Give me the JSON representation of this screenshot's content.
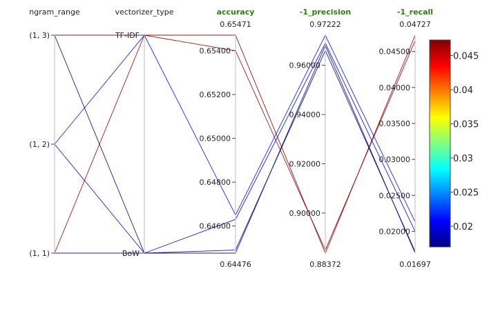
{
  "chart_data": {
    "type": "parallel_coordinates",
    "axes": [
      {
        "key": "ngram_range",
        "label": "ngram_range",
        "kind": "categorical",
        "categories": [
          "(1, 1)",
          "(1, 2)",
          "(1, 3)"
        ],
        "highlighted": false
      },
      {
        "key": "vectorizer_type",
        "label": "vectorizer_type",
        "kind": "categorical",
        "categories": [
          "BoW",
          "TF-IDF"
        ],
        "highlighted": false
      },
      {
        "key": "accuracy",
        "label": "accuracy",
        "kind": "numeric",
        "range": [
          0.64476,
          0.65471
        ],
        "range_labels": [
          "0.64476",
          "0.65471"
        ],
        "ticks": [
          0.646,
          0.648,
          0.65,
          0.652,
          0.654
        ],
        "tick_labels": [
          "0.64600",
          "0.64800",
          "0.65000",
          "0.65200",
          "0.65400"
        ],
        "highlighted": true
      },
      {
        "key": "precision",
        "label": "-1_precision",
        "kind": "numeric",
        "range": [
          0.88372,
          0.97222
        ],
        "range_labels": [
          "0.88372",
          "0.97222"
        ],
        "ticks": [
          0.9,
          0.92,
          0.94,
          0.96
        ],
        "tick_labels": [
          "0.90000",
          "0.92000",
          "0.94000",
          "0.96000"
        ],
        "highlighted": true
      },
      {
        "key": "recall",
        "label": "-1_recall",
        "kind": "numeric",
        "range": [
          0.01697,
          0.04727
        ],
        "range_labels": [
          "0.01697",
          "0.04727"
        ],
        "ticks": [
          0.02,
          0.025,
          0.03,
          0.035,
          0.04,
          0.045
        ],
        "tick_labels": [
          "0.02000",
          "0.02500",
          "0.03000",
          "0.03500",
          "0.04000",
          "0.04500"
        ],
        "highlighted": true
      }
    ],
    "rows": [
      {
        "ngram_range": "(1, 3)",
        "vectorizer_type": "TF-IDF",
        "accuracy": 0.65471,
        "precision": 0.88372,
        "recall": 0.04727
      },
      {
        "ngram_range": "(1, 1)",
        "vectorizer_type": "TF-IDF",
        "accuracy": 0.654,
        "precision": 0.885,
        "recall": 0.0465
      },
      {
        "ngram_range": "(1, 3)",
        "vectorizer_type": "BoW",
        "accuracy": 0.64476,
        "precision": 0.968,
        "recall": 0.01697
      },
      {
        "ngram_range": "(1, 1)",
        "vectorizer_type": "BoW",
        "accuracy": 0.6449,
        "precision": 0.966,
        "recall": 0.0172
      },
      {
        "ngram_range": "(1, 2)",
        "vectorizer_type": "TF-IDF",
        "accuracy": 0.6465,
        "precision": 0.97222,
        "recall": 0.0213
      },
      {
        "ngram_range": "(1, 2)",
        "vectorizer_type": "BoW",
        "accuracy": 0.6463,
        "precision": 0.969,
        "recall": 0.02
      }
    ],
    "color_by": "recall",
    "colorscale": "Jet",
    "colorbar": {
      "ticks": [
        0.02,
        0.025,
        0.03,
        0.035,
        0.04,
        0.045
      ],
      "tick_labels": [
        "0.02",
        "0.025",
        "0.03",
        "0.035",
        "0.04",
        "0.045"
      ]
    },
    "colors": {
      "highlight_title": "#2e7d0e",
      "plain_title": "#222222",
      "axis_line": "#c8c8c8"
    }
  }
}
